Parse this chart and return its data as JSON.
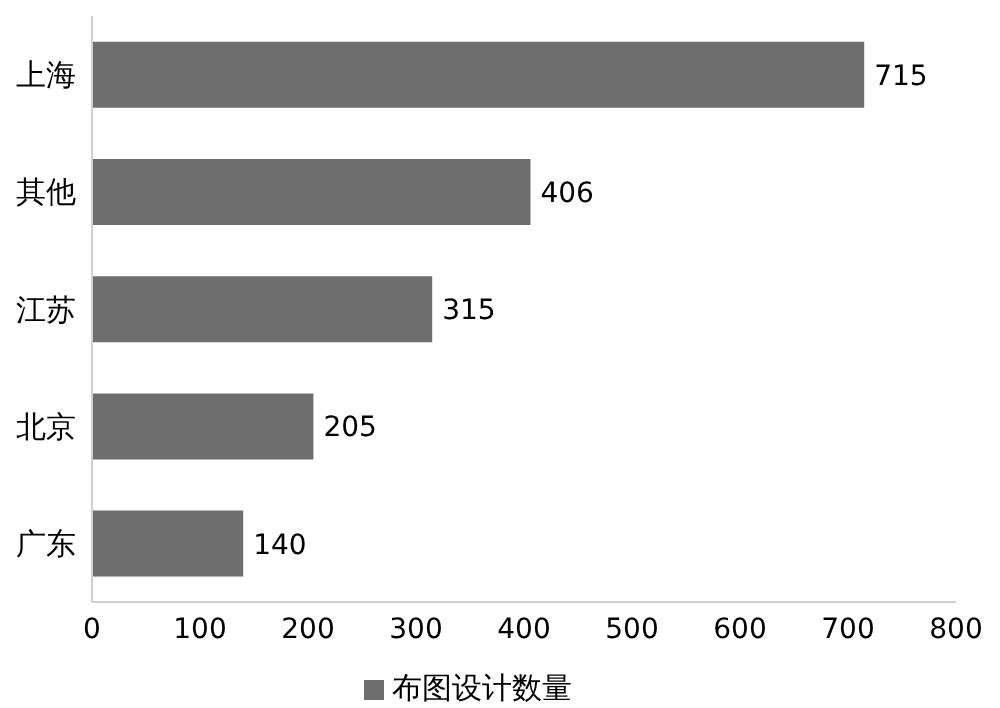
{
  "chart_data": {
    "type": "bar",
    "orientation": "horizontal",
    "categories": [
      "上海",
      "其他",
      "江苏",
      "北京",
      "广东"
    ],
    "series": [
      {
        "name": "布图设计数量",
        "color": "#6e6e6e",
        "values": [
          715,
          406,
          315,
          205,
          140
        ]
      }
    ],
    "xlim": [
      0,
      800
    ],
    "xticks": [
      0,
      100,
      200,
      300,
      400,
      500,
      600,
      700,
      800
    ],
    "grid": false,
    "legend": "bottom",
    "data_labels": true
  }
}
